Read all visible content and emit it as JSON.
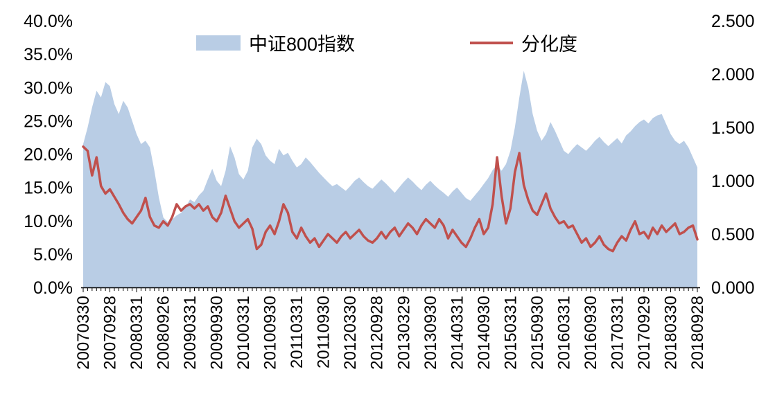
{
  "legend": {
    "series1_label": "中证800指数",
    "series2_label": "分化度"
  },
  "colors": {
    "area_fill": "#B9CDE5",
    "line_stroke": "#C0504D",
    "axis": "#000000",
    "text": "#000000"
  },
  "chart_data": {
    "type": "area+line combo, dual axis",
    "title": "",
    "xlabel": "",
    "ylabel_left": "",
    "ylabel_right": "",
    "grid": false,
    "legend_position": "top",
    "x_frequency": "monthly",
    "x_labels": [
      "20070330",
      "20070928",
      "20080331",
      "20080926",
      "20090331",
      "20090930",
      "20100331",
      "20100930",
      "20110331",
      "20110930",
      "20120330",
      "20120928",
      "20130329",
      "20130930",
      "20140331",
      "20140930",
      "20150331",
      "20150930",
      "20160331",
      "20160930",
      "20170331",
      "20170929",
      "20180330",
      "20180928"
    ],
    "x_label_every": 6,
    "left_axis": {
      "min": 0,
      "max": 40,
      "unit": "%",
      "ticks": [
        "40.0%",
        "35.0%",
        "30.0%",
        "25.0%",
        "20.0%",
        "15.0%",
        "10.0%",
        "5.0%",
        "0.0%"
      ]
    },
    "right_axis": {
      "min": 0,
      "max": 2.5,
      "ticks": [
        "2.500",
        "2.000",
        "1.500",
        "1.000",
        "0.500",
        "0.000"
      ]
    },
    "series": [
      {
        "name": "中证800指数",
        "render": "area",
        "axis": "left",
        "color": "#B9CDE5",
        "values": [
          21.5,
          24.0,
          27.0,
          29.5,
          28.5,
          30.8,
          30.2,
          27.5,
          26.0,
          28.0,
          27.0,
          25.0,
          23.0,
          21.5,
          22.0,
          21.0,
          17.5,
          13.5,
          10.5,
          9.8,
          10.2,
          10.8,
          11.2,
          12.0,
          13.2,
          12.8,
          13.8,
          14.5,
          16.2,
          17.8,
          16.0,
          15.2,
          17.5,
          21.2,
          19.5,
          17.0,
          16.2,
          17.5,
          21.0,
          22.3,
          21.5,
          19.8,
          19.0,
          18.5,
          20.8,
          19.8,
          20.2,
          19.0,
          18.0,
          18.5,
          19.5,
          18.8,
          18.0,
          17.2,
          16.5,
          15.8,
          15.2,
          15.5,
          15.0,
          14.5,
          15.2,
          16.0,
          16.5,
          15.8,
          15.2,
          14.8,
          15.5,
          16.2,
          15.6,
          14.9,
          14.2,
          15.0,
          15.8,
          16.5,
          15.9,
          15.2,
          14.6,
          15.4,
          16.0,
          15.3,
          14.7,
          14.2,
          13.6,
          14.4,
          15.0,
          14.2,
          13.4,
          13.0,
          13.8,
          14.6,
          15.5,
          16.4,
          17.6,
          18.4,
          17.5,
          18.5,
          20.5,
          24.0,
          28.5,
          32.5,
          30.0,
          26.0,
          23.5,
          22.0,
          23.0,
          24.8,
          23.5,
          22.0,
          20.5,
          20.0,
          20.8,
          21.5,
          21.0,
          20.5,
          21.2,
          22.0,
          22.6,
          21.8,
          21.2,
          21.8,
          22.4,
          21.6,
          22.8,
          23.4,
          24.2,
          24.8,
          25.2,
          24.6,
          25.4,
          25.8,
          26.0,
          24.5,
          23.0,
          22.0,
          21.5,
          22.0,
          21.0,
          19.5,
          18.0
        ]
      },
      {
        "name": "分化度",
        "render": "line",
        "axis": "right",
        "color": "#C0504D",
        "values": [
          1.32,
          1.28,
          1.05,
          1.22,
          0.95,
          0.88,
          0.92,
          0.85,
          0.78,
          0.7,
          0.64,
          0.6,
          0.66,
          0.72,
          0.84,
          0.66,
          0.58,
          0.56,
          0.62,
          0.58,
          0.66,
          0.78,
          0.72,
          0.76,
          0.78,
          0.74,
          0.78,
          0.72,
          0.76,
          0.66,
          0.62,
          0.7,
          0.86,
          0.74,
          0.62,
          0.56,
          0.6,
          0.64,
          0.55,
          0.36,
          0.4,
          0.52,
          0.58,
          0.5,
          0.62,
          0.78,
          0.7,
          0.52,
          0.46,
          0.56,
          0.48,
          0.42,
          0.46,
          0.38,
          0.44,
          0.5,
          0.46,
          0.42,
          0.48,
          0.52,
          0.46,
          0.5,
          0.54,
          0.48,
          0.44,
          0.42,
          0.46,
          0.52,
          0.46,
          0.52,
          0.56,
          0.48,
          0.54,
          0.6,
          0.56,
          0.5,
          0.58,
          0.64,
          0.6,
          0.56,
          0.64,
          0.58,
          0.46,
          0.54,
          0.48,
          0.42,
          0.38,
          0.46,
          0.56,
          0.64,
          0.5,
          0.56,
          0.78,
          1.22,
          0.86,
          0.6,
          0.74,
          1.08,
          1.26,
          0.96,
          0.82,
          0.72,
          0.68,
          0.78,
          0.88,
          0.74,
          0.66,
          0.6,
          0.62,
          0.56,
          0.58,
          0.5,
          0.42,
          0.46,
          0.38,
          0.42,
          0.48,
          0.4,
          0.36,
          0.34,
          0.42,
          0.48,
          0.44,
          0.54,
          0.62,
          0.5,
          0.52,
          0.46,
          0.56,
          0.5,
          0.58,
          0.52,
          0.56,
          0.6,
          0.5,
          0.52,
          0.56,
          0.58,
          0.45
        ]
      }
    ]
  }
}
